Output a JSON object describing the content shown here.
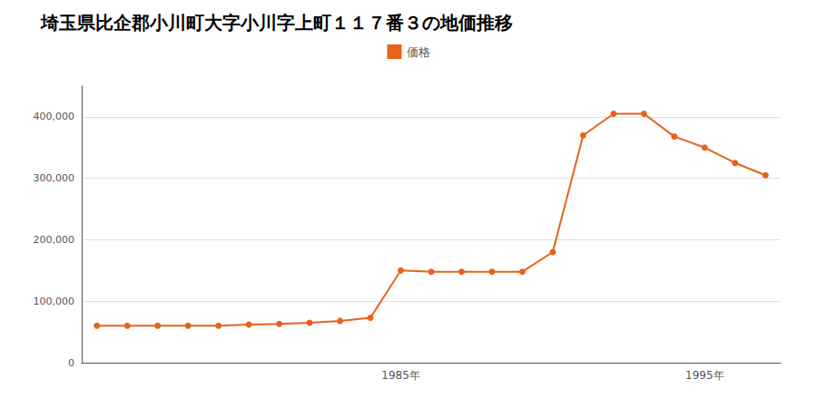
{
  "chart_data": {
    "type": "line",
    "title": "埼玉県比企郡小川町大字小川字上町１１７番３の地価推移",
    "x": [
      1975,
      1976,
      1977,
      1978,
      1979,
      1980,
      1981,
      1982,
      1983,
      1984,
      1985,
      1986,
      1987,
      1988,
      1989,
      1990,
      1991,
      1992,
      1993,
      1994,
      1995,
      1996,
      1997
    ],
    "series": [
      {
        "name": "価格",
        "color": "#e8621a",
        "marker": "circle",
        "values": [
          60000,
          60000,
          60000,
          60000,
          60000,
          62000,
          63000,
          65000,
          68000,
          73000,
          150000,
          148000,
          148000,
          148000,
          148000,
          180000,
          370000,
          405000,
          405000,
          368000,
          350000,
          325000,
          305000
        ]
      }
    ],
    "xlim": [
      1974.5,
      1997.5
    ],
    "xticks": [
      {
        "value": 1985,
        "label": "1985年"
      },
      {
        "value": 1995,
        "label": "1995年"
      }
    ],
    "ylim": [
      0,
      450000
    ],
    "yticks": [
      0,
      {
        "value": 100000,
        "label": "100,000"
      },
      {
        "value": 200000,
        "label": "200,000"
      },
      {
        "value": 300000,
        "label": "300,000"
      },
      {
        "value": 400000,
        "label": "400,000"
      }
    ],
    "grid": "y",
    "legend": "top"
  }
}
